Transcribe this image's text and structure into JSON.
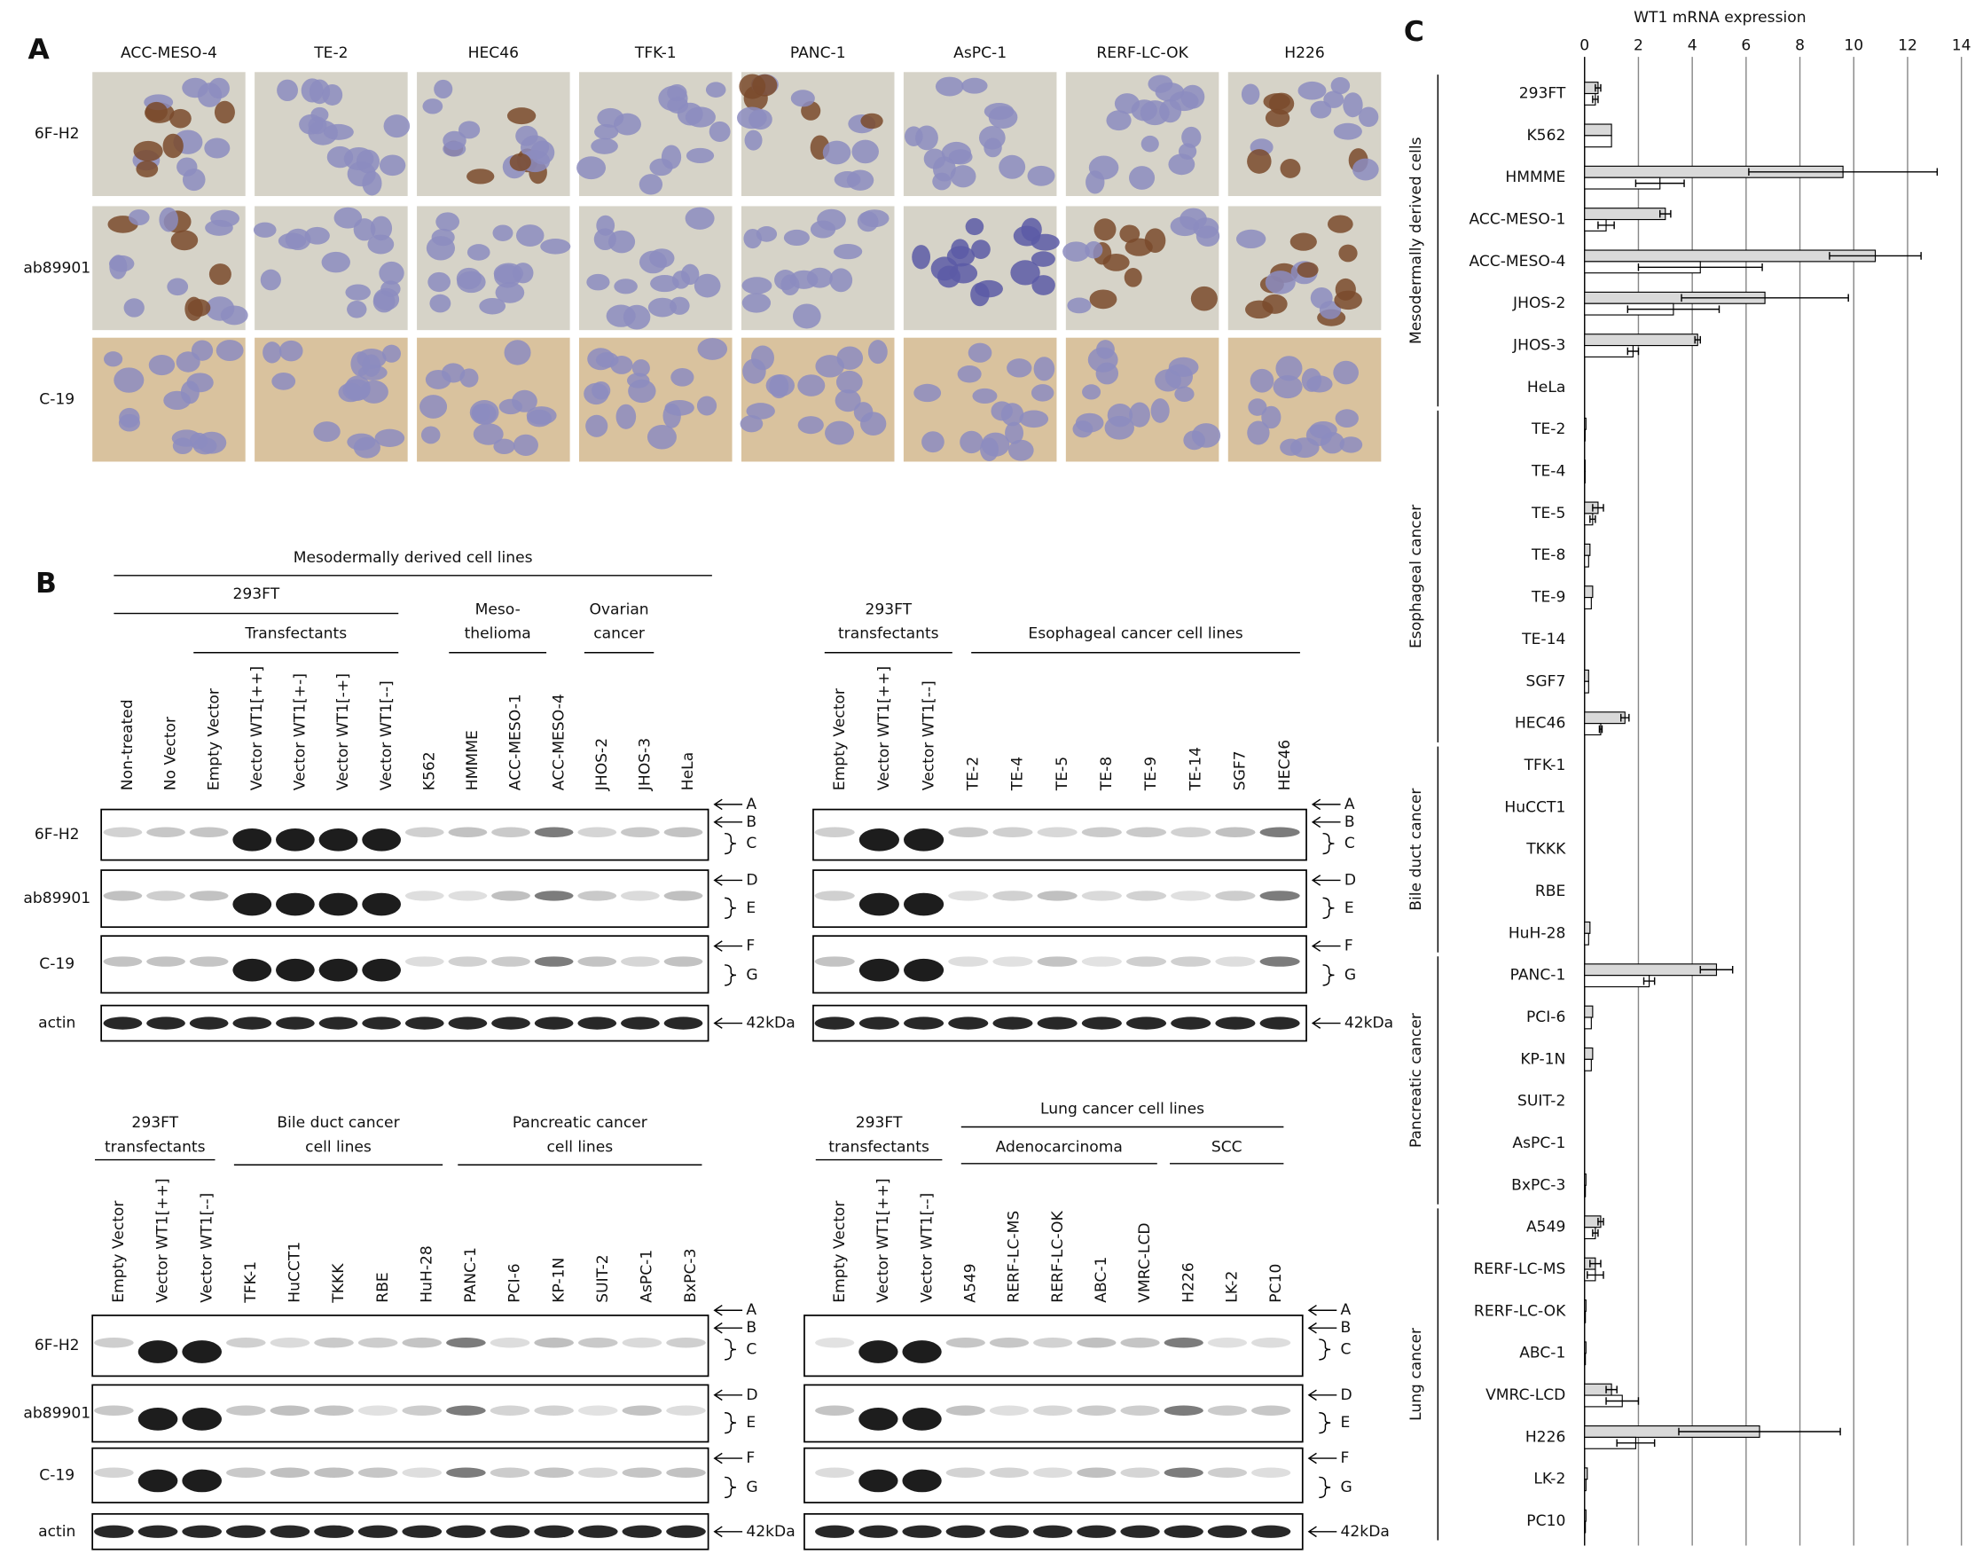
{
  "panel_labels": [
    "A",
    "B",
    "C"
  ],
  "panel_a": {
    "columns": [
      "ACC-MESO-4",
      "TE-2",
      "HEC46",
      "TFK-1",
      "PANC-1",
      "AsPC-1",
      "RERF-LC-OK",
      "H226"
    ],
    "rows": [
      "6F-H2",
      "ab89901",
      "C-19"
    ]
  },
  "panel_b": {
    "antibodies": [
      "6F-H2",
      "ab89901",
      "C-19",
      "actin"
    ],
    "markers": [
      "A",
      "B",
      "C",
      "D",
      "E",
      "F",
      "G",
      "42kDa"
    ],
    "blots": [
      {
        "headers": [
          {
            "lines": [
              "Mesodermally derived cell lines"
            ]
          },
          {
            "lines": [
              "293FT"
            ]
          },
          {
            "lines": [
              "Transfectants"
            ]
          },
          {
            "lines": [
              "Meso-",
              "thelioma"
            ]
          },
          {
            "lines": [
              "Ovarian",
              "cancer"
            ]
          }
        ],
        "lanes": [
          "Non-treated",
          "No Vector",
          "Empty Vector",
          "Vector WT1[++]",
          "Vector WT1[+-]",
          "Vector WT1[-+]",
          "Vector WT1[--]",
          "K562",
          "HMMME",
          "ACC-MESO-1",
          "ACC-MESO-4",
          "JHOS-2",
          "JHOS-3",
          "HeLa"
        ]
      },
      {
        "headers": [
          {
            "lines": [
              "293FT",
              "transfectants"
            ]
          },
          {
            "lines": [
              "Esophageal cancer cell lines"
            ]
          }
        ],
        "lanes": [
          "Empty Vector",
          "Vector WT1[++]",
          "Vector WT1[--]",
          "TE-2",
          "TE-4",
          "TE-5",
          "TE-8",
          "TE-9",
          "TE-14",
          "SGF7",
          "HEC46"
        ]
      },
      {
        "headers": [
          {
            "lines": [
              "293FT",
              "transfectants"
            ]
          },
          {
            "lines": [
              "Bile duct cancer",
              "cell lines"
            ]
          },
          {
            "lines": [
              "Pancreatic cancer",
              "cell lines"
            ]
          }
        ],
        "lanes": [
          "Empty Vector",
          "Vector WT1[++]",
          "Vector WT1[--]",
          "TFK-1",
          "HuCCT1",
          "TKKK",
          "RBE",
          "HuH-28",
          "PANC-1",
          "PCI-6",
          "KP-1N",
          "SUIT-2",
          "AsPC-1",
          "BxPC-3"
        ]
      },
      {
        "headers": [
          {
            "lines": [
              "293FT",
              "transfectants"
            ]
          },
          {
            "lines": [
              "Lung cancer cell lines"
            ]
          },
          {
            "lines": [
              "Adenocarcinoma"
            ]
          },
          {
            "lines": [
              "SCC"
            ]
          }
        ],
        "lanes": [
          "Empty Vector",
          "Vector WT1[++]",
          "Vector WT1[--]",
          "A549",
          "RERF-LC-MS",
          "RERF-LC-OK",
          "ABC-1",
          "VMRC-LCD",
          "H226",
          "LK-2",
          "PC10"
        ]
      }
    ]
  },
  "chart_data": {
    "type": "bar",
    "orientation": "horizontal",
    "xlabel": "WT1 mRNA expression",
    "categories": [
      "293FT",
      "K562",
      "HMMME",
      "ACC-MESO-1",
      "ACC-MESO-4",
      "JHOS-2",
      "JHOS-3",
      "HeLa",
      "TE-2",
      "TE-4",
      "TE-5",
      "TE-8",
      "TE-9",
      "TE-14",
      "SGF7",
      "HEC46",
      "TFK-1",
      "HuCCT1",
      "TKKK",
      "RBE",
      "HuH-28",
      "PANC-1",
      "PCI-6",
      "KP-1N",
      "SUIT-2",
      "AsPC-1",
      "BxPC-3",
      "A549",
      "RERF-LC-MS",
      "RERF-LC-OK",
      "ABC-1",
      "VMRC-LCD",
      "H226",
      "LK-2",
      "PC10"
    ],
    "group_labels": [
      "Mesodermally derived cells",
      "Esophageal cancer",
      "Bile duct cancer",
      "Pancreatic cancer",
      "Lung cancer"
    ],
    "series": [
      {
        "color": "#d9d9d9",
        "values": [
          0.5,
          1.0,
          9.6,
          3.0,
          10.8,
          6.7,
          4.2,
          0,
          0.05,
          0.02,
          0.5,
          0.2,
          0.3,
          0,
          0.15,
          1.5,
          0,
          0,
          0,
          0,
          0.2,
          4.9,
          0.3,
          0.3,
          0,
          0,
          0.05,
          0.6,
          0.4,
          0.05,
          0.05,
          1.0,
          6.5,
          0.1,
          0.05
        ],
        "errors": [
          0.1,
          null,
          3.5,
          0.2,
          1.7,
          3.1,
          0.1,
          null,
          null,
          null,
          0.2,
          null,
          null,
          null,
          null,
          0.15,
          null,
          null,
          null,
          null,
          null,
          0.6,
          null,
          null,
          null,
          null,
          null,
          0.1,
          0.2,
          null,
          null,
          0.2,
          3.0,
          null,
          null
        ]
      },
      {
        "color": "#ffffff",
        "values": [
          0.4,
          1.0,
          2.8,
          0.8,
          4.3,
          3.3,
          1.8,
          0,
          0.02,
          0.02,
          0.3,
          0.15,
          0.25,
          0,
          0.15,
          0.6,
          0,
          0,
          0,
          0,
          0.15,
          2.4,
          0.25,
          0.25,
          0,
          0,
          0.03,
          0.4,
          0.4,
          0.03,
          0.03,
          1.4,
          1.9,
          0.05,
          0.03
        ],
        "errors": [
          0.1,
          null,
          0.9,
          0.3,
          2.3,
          1.7,
          0.2,
          null,
          null,
          null,
          0.1,
          null,
          null,
          null,
          null,
          0.05,
          null,
          null,
          null,
          null,
          null,
          0.2,
          null,
          null,
          null,
          null,
          null,
          0.1,
          0.3,
          null,
          null,
          0.6,
          0.7,
          null,
          null
        ]
      }
    ],
    "xlim": [
      0,
      14
    ],
    "xticks": [
      0,
      2,
      4,
      6,
      8,
      10,
      12,
      14
    ],
    "grid": true
  }
}
